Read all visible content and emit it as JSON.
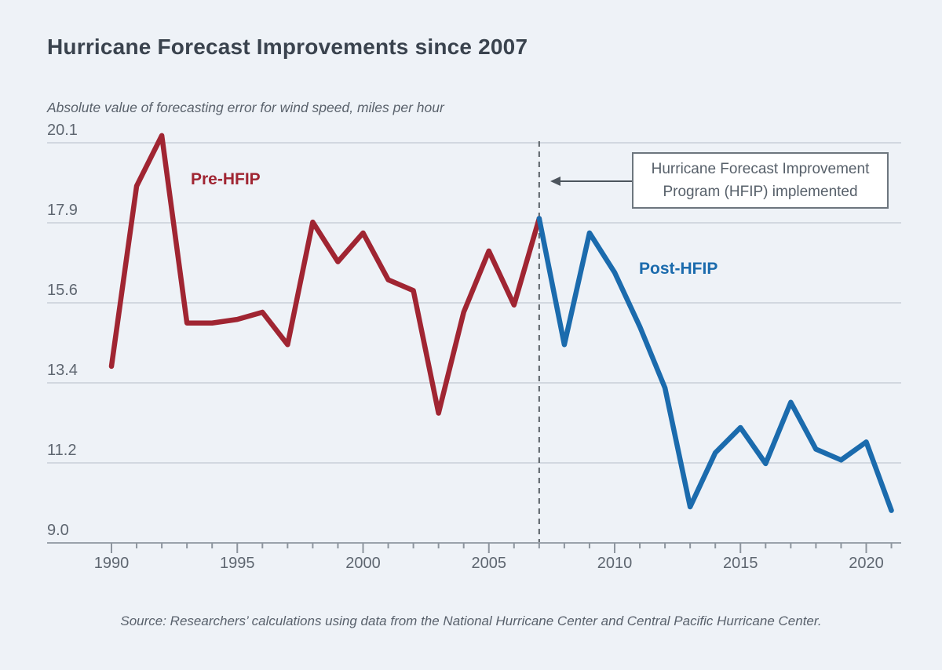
{
  "header": {
    "title": "Hurricane Forecast Improvements since 2007",
    "subtitle": "Absolute value of forecasting error for wind speed, miles per hour"
  },
  "footer": {
    "source": "Source: Researchers’ calculations using data from the National Hurricane Center and Central Pacific Hurricane Center."
  },
  "colors": {
    "background": "#eef2f7",
    "pre_hfip_red": "#a02532",
    "post_hfip_blue": "#1b6bad",
    "gridline": "#c8d0d8",
    "axis": "#9aa2ab",
    "tick": "#8d959e",
    "dashed_event_line": "#596066",
    "arrow": "#4d555d",
    "annotation_border": "#6d767e",
    "annotation_text": "#57606a"
  },
  "chart_data": {
    "type": "line",
    "title": "Hurricane Forecast Improvements since 2007",
    "ylabel": "Absolute value of forecasting error for wind speed, miles per hour",
    "xlabel": "",
    "grid": true,
    "legend_position": "inline-labels",
    "x_axis": {
      "tick_start": 1990,
      "tick_end": 2021,
      "labeled_ticks": [
        1990,
        1995,
        2000,
        2005,
        2010,
        2015,
        2020
      ]
    },
    "y_axis": {
      "min": 9.0,
      "max": 20.1,
      "ticks": [
        {
          "label": "20.1",
          "value": 20.1
        },
        {
          "label": "17.9",
          "value": 17.88
        },
        {
          "label": "15.6",
          "value": 15.66
        },
        {
          "label": "13.4",
          "value": 13.44
        },
        {
          "label": "11.2",
          "value": 11.22
        },
        {
          "label": "9.0",
          "value": 9.0
        }
      ]
    },
    "event_line": {
      "year": 2007
    },
    "annotation": {
      "line1": "Hurricane Forecast Improvement",
      "line2": "Program (HFIP) implemented"
    },
    "series": [
      {
        "name": "Pre-HFIP",
        "color": "#a02532",
        "x": [
          1990,
          1991,
          1992,
          1993,
          1994,
          1995,
          1996,
          1997,
          1998,
          1999,
          2000,
          2001,
          2002,
          2003,
          2004,
          2005,
          2006,
          2007
        ],
        "values": [
          13.9,
          18.9,
          20.3,
          15.1,
          15.1,
          15.2,
          15.4,
          14.5,
          17.9,
          16.8,
          17.6,
          16.3,
          16.0,
          12.6,
          15.4,
          17.1,
          15.6,
          18.0
        ]
      },
      {
        "name": "Post-HFIP",
        "color": "#1b6bad",
        "x": [
          2007,
          2008,
          2009,
          2010,
          2011,
          2012,
          2013,
          2014,
          2015,
          2016,
          2017,
          2018,
          2019,
          2020,
          2021
        ],
        "values": [
          18.0,
          14.5,
          17.6,
          16.5,
          15.0,
          13.3,
          10.0,
          11.5,
          12.2,
          11.2,
          12.9,
          11.6,
          11.3,
          11.8,
          9.9
        ]
      }
    ]
  }
}
